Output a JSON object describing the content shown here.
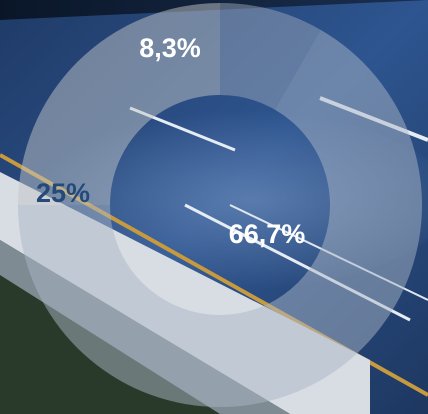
{
  "chart_data": {
    "type": "pie",
    "style": "donut",
    "slices": [
      {
        "label": "8,3%",
        "value": 8.3,
        "color": "#9aa6ba",
        "text_color": "#ffffff"
      },
      {
        "label": "66,7%",
        "value": 66.7,
        "color": "#aab5c6",
        "text_color": "#ffffff"
      },
      {
        "label": "25%",
        "value": 25,
        "color": "#c2c5c8",
        "text_color": "#234a78"
      }
    ],
    "start_angle_deg": 0,
    "direction": "clockwise",
    "ring_opacity": 0.5
  },
  "background": {
    "description_color_road": "#2a4c7e",
    "color_sky": "#0c1a30",
    "color_grass": "#2a3a2a",
    "color_line": "#c89a40",
    "color_barrier": "#d8dde3"
  }
}
